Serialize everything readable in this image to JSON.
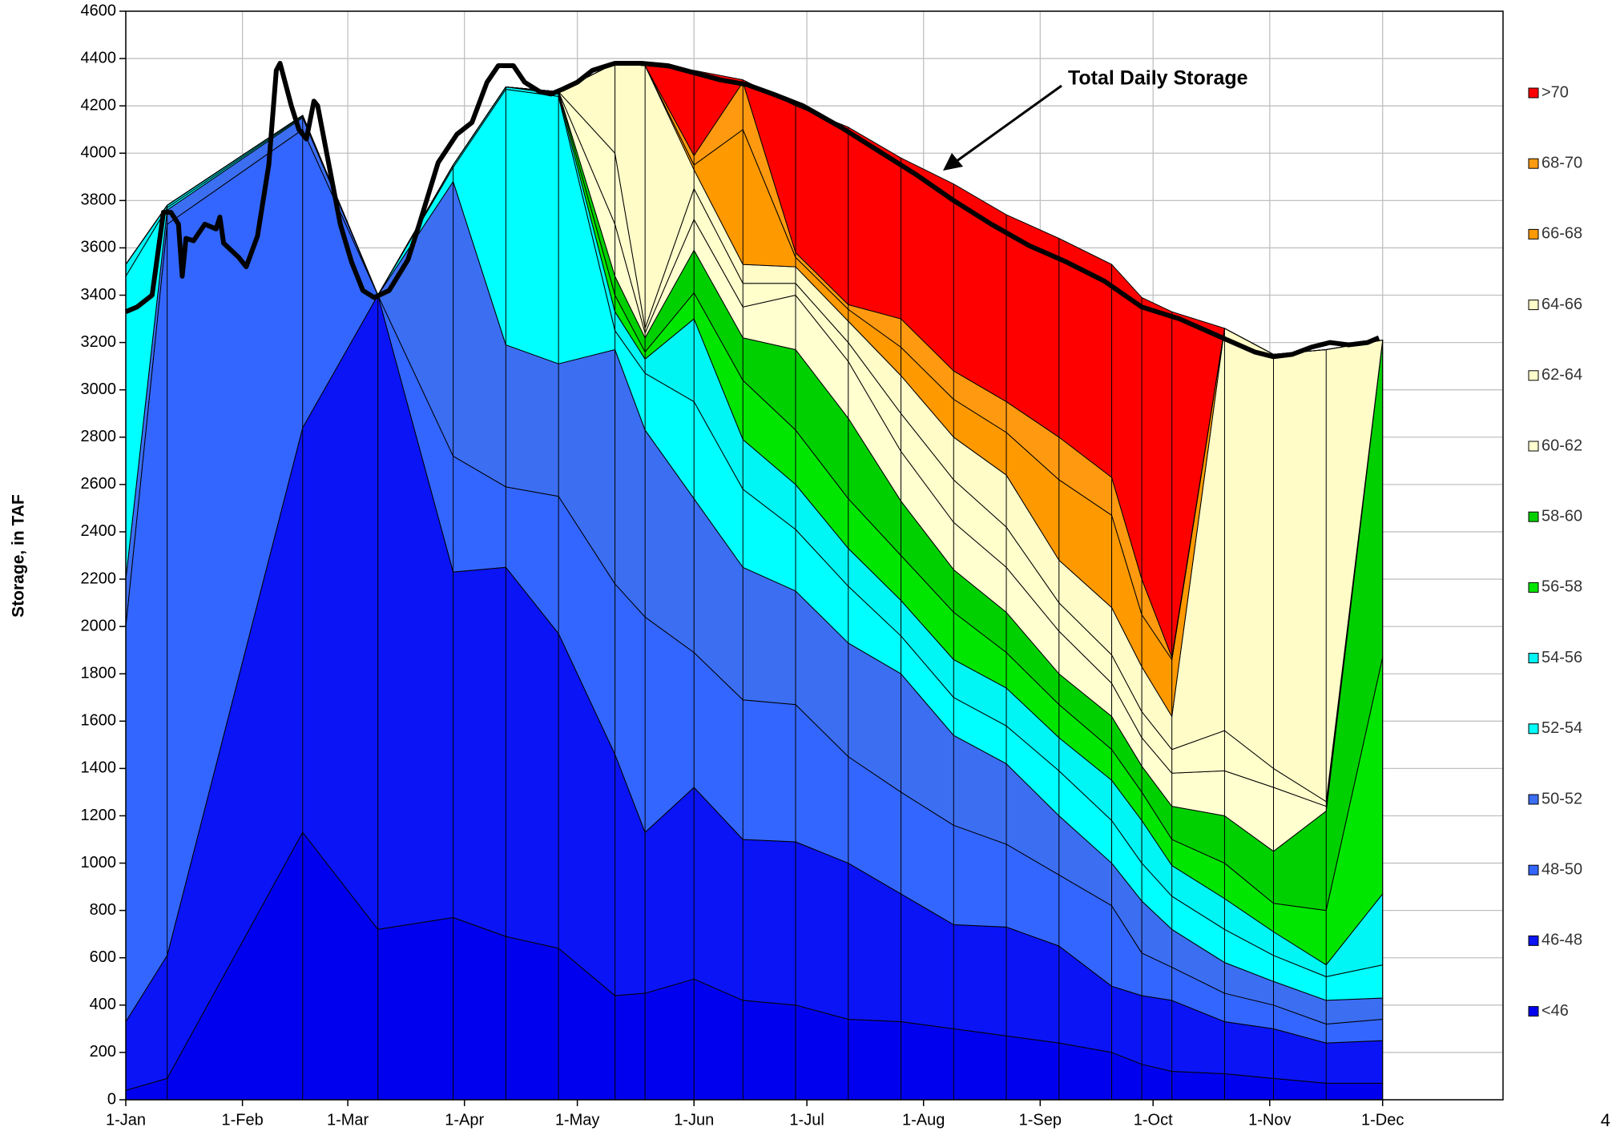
{
  "chart_data": {
    "type": "stacked_area",
    "ylabel": "Storage, in TAF",
    "annotation": "Total Daily Storage",
    "page_number": "4",
    "grid": true,
    "legend": "right",
    "xlim": [
      0,
      366
    ],
    "ylim": [
      0,
      4600
    ],
    "xticks": [
      {
        "value": 0,
        "label": "1-Jan"
      },
      {
        "value": 31,
        "label": "1-Feb"
      },
      {
        "value": 59,
        "label": "1-Mar"
      },
      {
        "value": 90,
        "label": "1-Apr"
      },
      {
        "value": 120,
        "label": "1-May"
      },
      {
        "value": 151,
        "label": "1-Jun"
      },
      {
        "value": 181,
        "label": "1-Jul"
      },
      {
        "value": 212,
        "label": "1-Aug"
      },
      {
        "value": 243,
        "label": "1-Sep"
      },
      {
        "value": 273,
        "label": "1-Oct"
      },
      {
        "value": 304,
        "label": "1-Nov"
      },
      {
        "value": 334,
        "label": "1-Dec"
      }
    ],
    "yticks": [
      0,
      200,
      400,
      600,
      800,
      1000,
      1200,
      1400,
      1600,
      1800,
      2000,
      2200,
      2400,
      2600,
      2800,
      3000,
      3200,
      3400,
      3600,
      3800,
      4000,
      4200,
      4400,
      4600
    ],
    "x": [
      0,
      11,
      47,
      67,
      87,
      101,
      115,
      130,
      138,
      151,
      164,
      178,
      192,
      206,
      220,
      234,
      248,
      262,
      270,
      278,
      292,
      305,
      319,
      334
    ],
    "series": [
      {
        "name": "<46",
        "color": "#0000ee",
        "values": [
          40,
          90,
          1130,
          720,
          770,
          690,
          640,
          440,
          450,
          510,
          420,
          400,
          340,
          330,
          300,
          270,
          240,
          200,
          150,
          120,
          110,
          90,
          70,
          70
        ]
      },
      {
        "name": "46-48",
        "color": "#0a14f5",
        "values": [
          290,
          520,
          1710,
          2680,
          1460,
          1560,
          1330,
          1020,
          680,
          810,
          680,
          690,
          660,
          540,
          440,
          460,
          410,
          280,
          290,
          300,
          220,
          210,
          170,
          180
        ]
      },
      {
        "name": "48-50",
        "color": "#3366ff",
        "values": [
          1670,
          3090,
          1260,
          0,
          490,
          340,
          580,
          720,
          910,
          570,
          590,
          580,
          450,
          430,
          420,
          350,
          300,
          340,
          180,
          140,
          120,
          100,
          80,
          90
        ]
      },
      {
        "name": "50-52",
        "color": "#3c6ef2",
        "values": [
          200,
          60,
          50,
          0,
          1160,
          600,
          560,
          990,
          790,
          650,
          560,
          480,
          480,
          500,
          380,
          340,
          250,
          180,
          220,
          160,
          130,
          100,
          100,
          90
        ]
      },
      {
        "name": "52-54",
        "color": "#00ffff",
        "values": [
          1280,
          10,
          5,
          0,
          60,
          1080,
          1130,
          80,
          240,
          410,
          330,
          260,
          240,
          160,
          160,
          160,
          190,
          180,
          160,
          140,
          140,
          110,
          100,
          140
        ]
      },
      {
        "name": "54-56",
        "color": "#00f5f5",
        "values": [
          50,
          10,
          5,
          0,
          10,
          10,
          10,
          80,
          60,
          350,
          210,
          190,
          160,
          150,
          160,
          160,
          140,
          170,
          180,
          130,
          130,
          100,
          50,
          300
        ]
      },
      {
        "name": "56-58",
        "color": "#00e600",
        "values": [
          0,
          0,
          0,
          0,
          0,
          0,
          10,
          70,
          30,
          110,
          250,
          230,
          210,
          190,
          200,
          150,
          140,
          130,
          120,
          110,
          150,
          120,
          230,
          1000
        ]
      },
      {
        "name": "58-60",
        "color": "#00d000",
        "values": [
          0,
          0,
          0,
          0,
          0,
          0,
          0,
          80,
          60,
          180,
          180,
          340,
          340,
          230,
          180,
          170,
          130,
          140,
          110,
          140,
          200,
          220,
          420,
          1340
        ]
      },
      {
        "name": "60-62",
        "color": "#ffffd0",
        "values": [
          0,
          0,
          0,
          0,
          0,
          0,
          0,
          220,
          20,
          130,
          130,
          230,
          240,
          210,
          200,
          190,
          180,
          140,
          120,
          140,
          190,
          270,
          20,
          0
        ]
      },
      {
        "name": "62-64",
        "color": "#ffffcc",
        "values": [
          0,
          0,
          0,
          0,
          0,
          0,
          0,
          300,
          20,
          130,
          100,
          50,
          80,
          160,
          180,
          170,
          120,
          120,
          110,
          100,
          170,
          80,
          20,
          0
        ]
      },
      {
        "name": "64-66",
        "color": "#fffcc8",
        "values": [
          0,
          0,
          0,
          0,
          0,
          0,
          0,
          380,
          1110,
          80,
          80,
          70,
          90,
          160,
          180,
          220,
          180,
          200,
          190,
          140,
          1700,
          1750,
          1910,
          0
        ]
      },
      {
        "name": "66-68",
        "color": "#ff9900",
        "values": [
          0,
          0,
          0,
          0,
          0,
          0,
          0,
          0,
          0,
          20,
          570,
          40,
          50,
          120,
          160,
          180,
          340,
          390,
          220,
          240,
          0,
          0,
          0,
          0
        ]
      },
      {
        "name": "68-70",
        "color": "#ff9a10",
        "values": [
          0,
          0,
          0,
          0,
          0,
          0,
          0,
          0,
          0,
          40,
          200,
          20,
          20,
          120,
          120,
          130,
          180,
          160,
          150,
          10,
          0,
          0,
          0,
          0
        ]
      },
      {
        "name": ">70",
        "color": "#ff0000",
        "values": [
          0,
          0,
          0,
          0,
          0,
          0,
          0,
          0,
          0,
          360,
          10,
          620,
          750,
          680,
          790,
          790,
          840,
          900,
          1190,
          1460,
          0,
          0,
          0,
          0
        ]
      }
    ],
    "total": {
      "color": "#000000",
      "x": [
        0,
        3,
        7,
        10,
        12,
        14,
        15,
        16,
        18,
        21,
        24,
        25,
        26,
        30,
        32,
        35,
        38,
        40,
        41,
        44,
        46,
        48,
        50,
        51,
        54,
        57,
        60,
        63,
        66,
        70,
        75,
        78,
        83,
        88,
        92,
        96,
        99,
        103,
        106,
        110,
        113,
        116,
        120,
        124,
        130,
        137,
        144,
        151,
        158,
        165,
        172,
        180,
        190,
        200,
        210,
        220,
        230,
        240,
        250,
        260,
        270,
        280,
        290,
        300,
        305,
        310,
        315,
        320,
        325,
        330,
        333
      ],
      "values": [
        3330,
        3350,
        3400,
        3750,
        3750,
        3700,
        3480,
        3640,
        3630,
        3700,
        3680,
        3730,
        3620,
        3560,
        3520,
        3650,
        3950,
        4350,
        4380,
        4200,
        4100,
        4060,
        4220,
        4200,
        3950,
        3700,
        3540,
        3420,
        3390,
        3420,
        3550,
        3700,
        3960,
        4080,
        4130,
        4300,
        4370,
        4370,
        4300,
        4260,
        4250,
        4270,
        4300,
        4350,
        4380,
        4380,
        4370,
        4340,
        4310,
        4290,
        4250,
        4200,
        4110,
        4010,
        3910,
        3800,
        3700,
        3610,
        3540,
        3460,
        3350,
        3300,
        3230,
        3160,
        3140,
        3150,
        3180,
        3200,
        3190,
        3200,
        3220
      ]
    }
  }
}
